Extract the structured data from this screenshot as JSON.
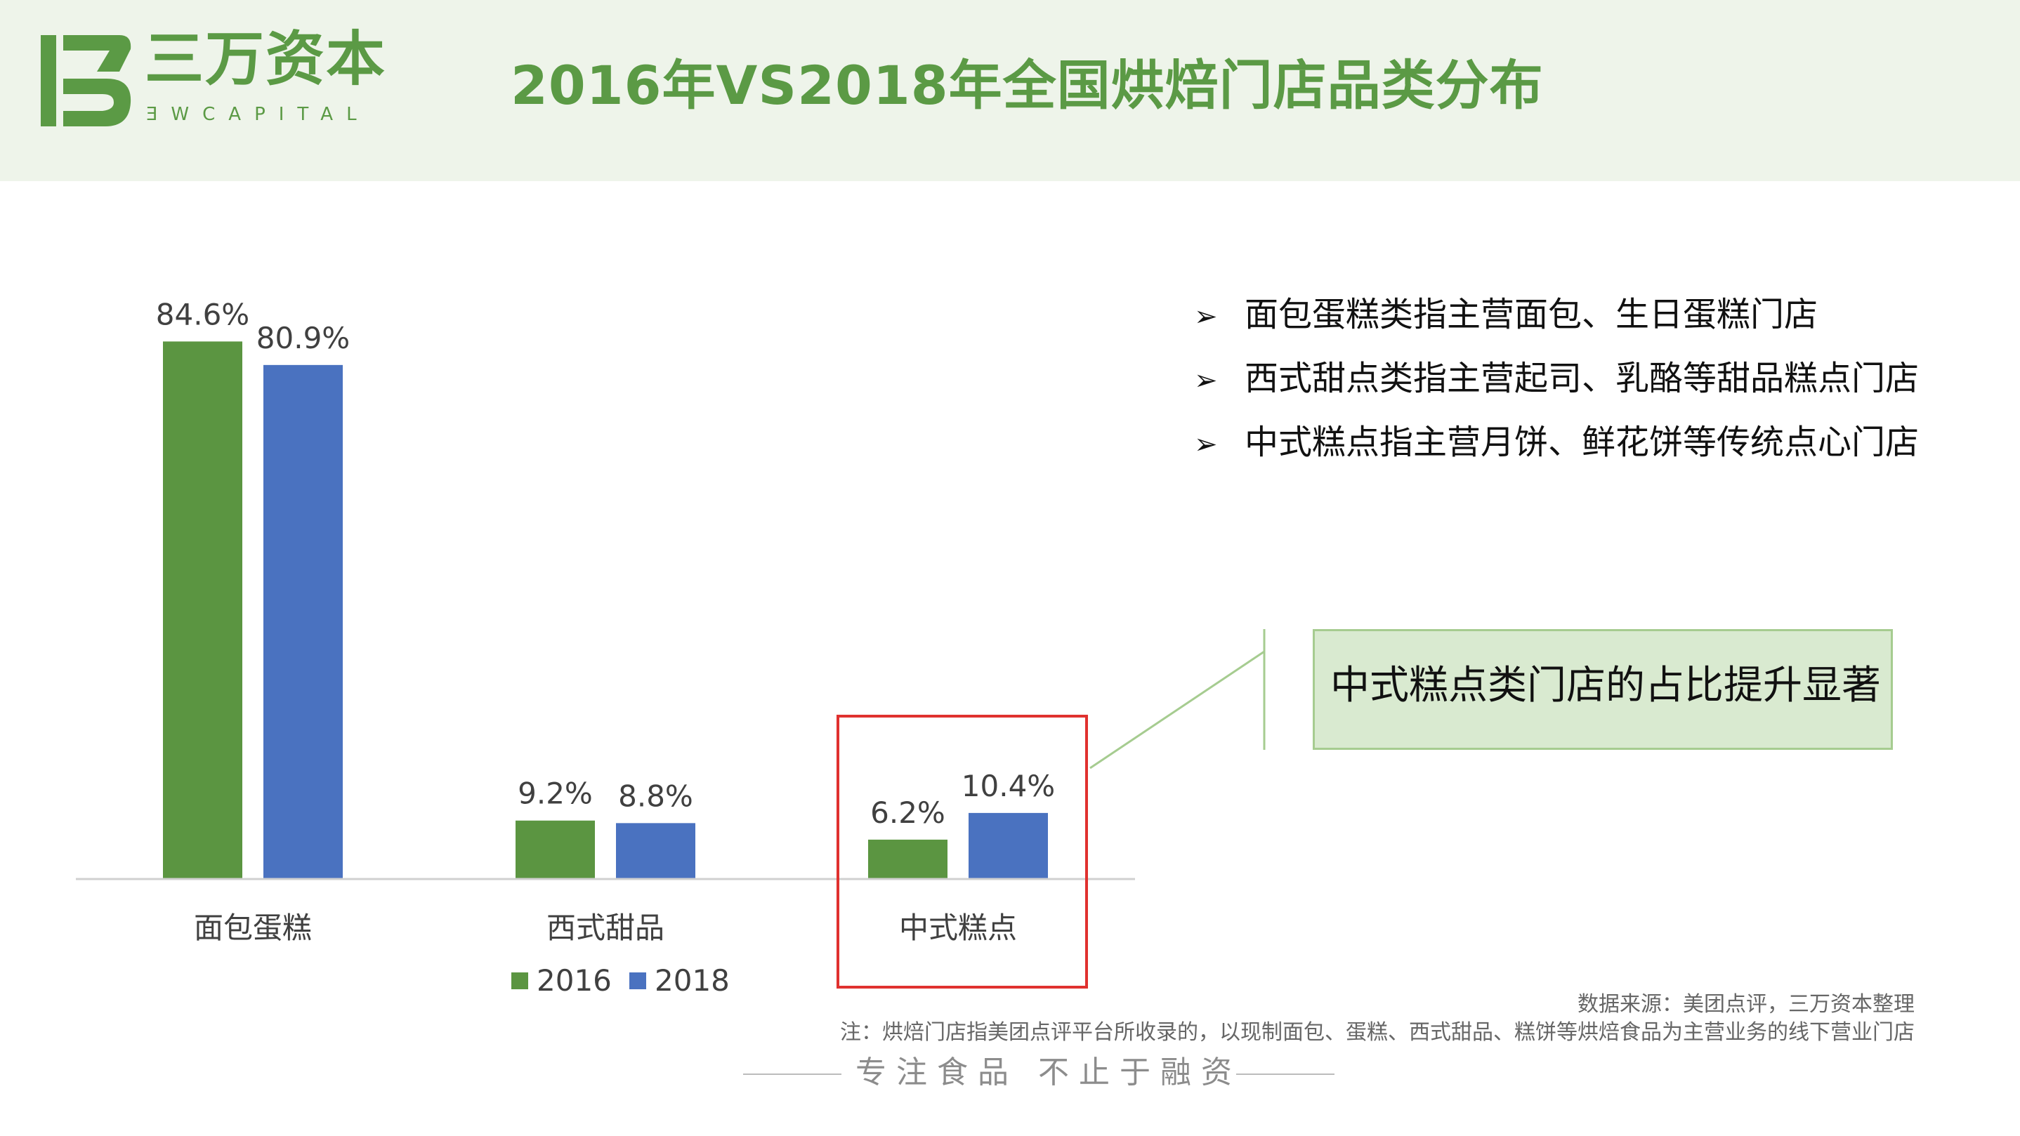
{
  "header": {
    "logo_cn": "三万资本",
    "logo_en": "ƎWCAPITAL",
    "title": "2016年VS2018年全国烘焙门店品类分布"
  },
  "bullets": [
    "面包蛋糕类指主营面包、生日蛋糕门店",
    "西式甜点类指主营起司、乳酪等甜品糕点门店",
    "中式糕点指主营月饼、鲜花饼等传统点心门店"
  ],
  "callout": "中式糕点类门店的占比提升显著",
  "footer": {
    "source": "数据来源：美团点评，三万资本整理",
    "note": "注：烘焙门店指美团点评平台所收录的，以现制面包、蛋糕、西式甜品、糕饼等烘焙食品为主营业务的线下营业门店",
    "slogan": "专注食品  不止于融资"
  },
  "colors": {
    "brand_green": "#5b9a45",
    "series_2016": "#5b9541",
    "series_2018": "#4a72c0",
    "highlight_border": "#e0312f",
    "callout_fill": "#d9ead0"
  },
  "chart_data": {
    "type": "bar",
    "categories": [
      "面包蛋糕",
      "西式甜品",
      "中式糕点"
    ],
    "series": [
      {
        "name": "2016",
        "values": [
          84.6,
          9.2,
          6.2
        ],
        "labels": [
          "84.6%",
          "9.2%",
          "6.2%"
        ]
      },
      {
        "name": "2018",
        "values": [
          80.9,
          8.8,
          10.4
        ],
        "labels": [
          "80.9%",
          "8.8%",
          "10.4%"
        ]
      }
    ],
    "highlighted_category": "中式糕点",
    "ylim": [
      0,
      100
    ],
    "grid": false,
    "legend_position": "bottom",
    "unit": "%"
  }
}
